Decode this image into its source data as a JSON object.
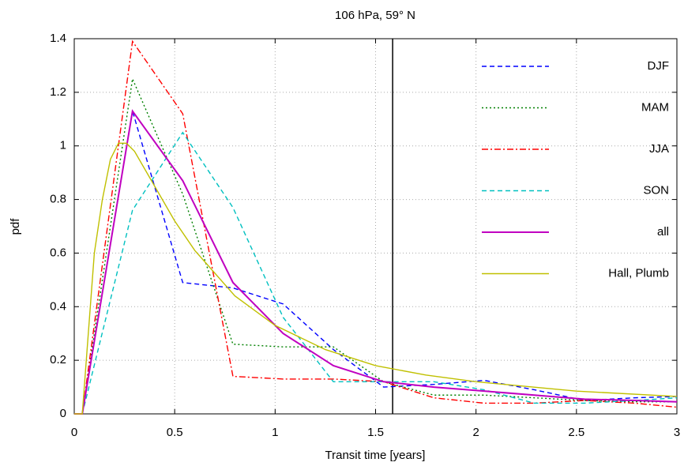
{
  "chart_data": {
    "type": "line",
    "title": "106 hPa, 59° N",
    "xlabel": "Transit time [years]",
    "ylabel": "pdf",
    "xlim": [
      0,
      3
    ],
    "ylim": [
      0,
      1.4
    ],
    "xticks": [
      0,
      0.5,
      1,
      1.5,
      2,
      2.5,
      3
    ],
    "yticks": [
      0,
      0.2,
      0.4,
      0.6,
      0.8,
      1,
      1.2,
      1.4
    ],
    "grid": true,
    "legend": "upper right",
    "vertical_line": 1.585,
    "series": [
      {
        "name": "DJF",
        "color": "#0000ff",
        "dash": "6,4",
        "x": [
          0,
          0.04,
          0.29,
          0.54,
          0.79,
          1.04,
          1.29,
          1.54,
          1.79,
          2.04,
          2.29,
          2.54,
          2.79,
          3.0
        ],
        "values": [
          0,
          0,
          1.13,
          0.49,
          0.47,
          0.41,
          0.24,
          0.1,
          0.11,
          0.125,
          0.09,
          0.05,
          0.06,
          0.065
        ]
      },
      {
        "name": "MAM",
        "color": "#008000",
        "dash": "2,3",
        "x": [
          0,
          0.04,
          0.29,
          0.54,
          0.79,
          1.04,
          1.29,
          1.54,
          1.79,
          2.04,
          2.29,
          2.54,
          2.79,
          3.0
        ],
        "values": [
          0,
          0,
          1.25,
          0.82,
          0.26,
          0.25,
          0.25,
          0.12,
          0.07,
          0.07,
          0.06,
          0.05,
          0.045,
          0.045
        ]
      },
      {
        "name": "JJA",
        "color": "#ff0000",
        "dash": "8,3,2,3",
        "x": [
          0,
          0.04,
          0.29,
          0.54,
          0.79,
          1.04,
          1.29,
          1.54,
          1.79,
          2.04,
          2.29,
          2.54,
          2.79,
          3.0
        ],
        "values": [
          0,
          0,
          1.39,
          1.12,
          0.14,
          0.13,
          0.13,
          0.12,
          0.06,
          0.04,
          0.04,
          0.05,
          0.04,
          0.025
        ]
      },
      {
        "name": "SON",
        "color": "#00c0c0",
        "dash": "6,4",
        "x": [
          0,
          0.04,
          0.29,
          0.54,
          0.79,
          1.04,
          1.29,
          1.54,
          1.79,
          2.04,
          2.29,
          2.54,
          2.79,
          3.0
        ],
        "values": [
          0,
          0,
          0.76,
          1.05,
          0.77,
          0.36,
          0.12,
          0.12,
          0.12,
          0.09,
          0.04,
          0.04,
          0.05,
          0.06
        ]
      },
      {
        "name": "all",
        "color": "#c000c0",
        "width": 2,
        "x": [
          0,
          0.04,
          0.29,
          0.54,
          0.79,
          1.04,
          1.29,
          1.54,
          1.79,
          2.04,
          2.29,
          2.54,
          2.79,
          3.0
        ],
        "values": [
          0,
          0,
          1.13,
          0.87,
          0.49,
          0.3,
          0.18,
          0.12,
          0.1,
          0.085,
          0.07,
          0.055,
          0.05,
          0.045
        ]
      },
      {
        "name": "Hall, Plumb",
        "color": "#c0c000",
        "x": [
          0,
          0.04,
          0.1,
          0.14,
          0.18,
          0.22,
          0.26,
          0.3,
          0.4,
          0.5,
          0.6,
          0.8,
          1.0,
          1.25,
          1.5,
          1.75,
          2.0,
          2.5,
          3.0
        ],
        "values": [
          0,
          0,
          0.6,
          0.8,
          0.95,
          1.01,
          1.01,
          0.98,
          0.85,
          0.72,
          0.61,
          0.44,
          0.33,
          0.24,
          0.18,
          0.145,
          0.12,
          0.085,
          0.065
        ]
      }
    ]
  }
}
